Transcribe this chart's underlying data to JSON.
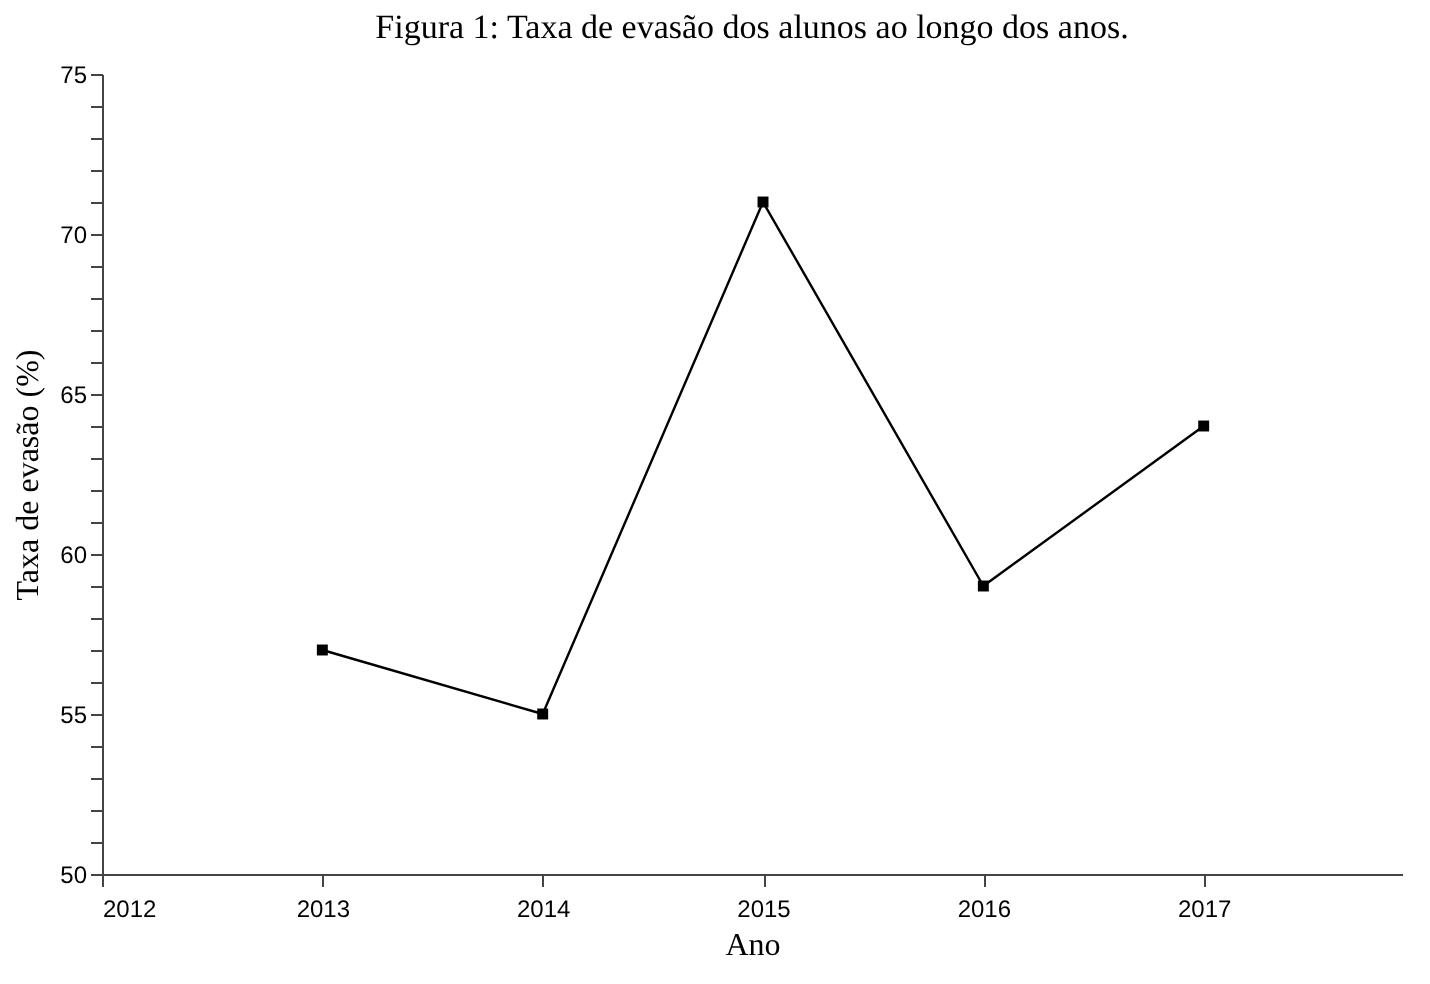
{
  "chart_data": {
    "type": "line",
    "title": "Figura 1: Taxa de evasão dos alunos ao longo dos anos.",
    "xlabel": "Ano",
    "ylabel": "Taxa de evasão (%)",
    "x": [
      2013,
      2014,
      2015,
      2016,
      2017
    ],
    "series": [
      {
        "color": "#000000",
        "values": [
          57,
          55,
          71,
          59,
          64
        ]
      }
    ],
    "xlim": [
      2012,
      2017.9
    ],
    "xticks": [
      2012,
      2013,
      2014,
      2015,
      2016,
      2017
    ],
    "ylim": [
      50,
      75
    ],
    "yticks": [
      50,
      {
        "value": 51,
        "label": null
      },
      {
        "value": 52,
        "label": null
      },
      {
        "value": 53,
        "label": null
      },
      {
        "value": 54,
        "label": null
      },
      55,
      {
        "value": 56,
        "label": null
      },
      {
        "value": 57,
        "label": null
      },
      {
        "value": 58,
        "label": null
      },
      {
        "value": 59,
        "label": null
      },
      60,
      {
        "value": 61,
        "label": null
      },
      {
        "value": 62,
        "label": null
      },
      {
        "value": 63,
        "label": null
      },
      {
        "value": 64,
        "label": null
      },
      65,
      {
        "value": 66,
        "label": null
      },
      {
        "value": 67,
        "label": null
      },
      {
        "value": 68,
        "label": null
      },
      {
        "value": 69,
        "label": null
      },
      70,
      {
        "value": 71,
        "label": null
      },
      {
        "value": 72,
        "label": null
      },
      {
        "value": 73,
        "label": null
      },
      {
        "value": 74,
        "label": null
      },
      75
    ],
    "grid": false,
    "marker": "square",
    "line_style": "solid"
  }
}
